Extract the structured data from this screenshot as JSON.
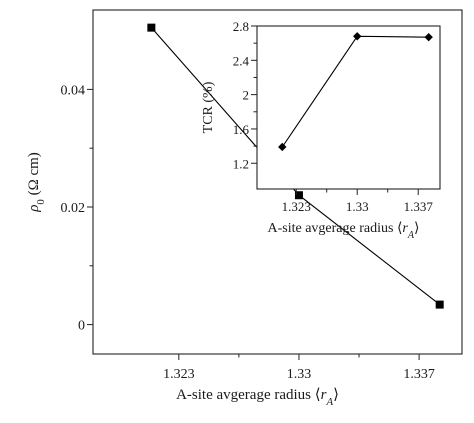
{
  "chart_data": [
    {
      "type": "line",
      "marker": "square",
      "x": [
        1.3214,
        1.33,
        1.3382
      ],
      "y": [
        0.0505,
        0.022,
        0.0034
      ],
      "xlim": [
        1.318,
        1.3395
      ],
      "ylim": [
        -0.005,
        0.0535
      ],
      "xticks": [
        1.323,
        1.33,
        1.337
      ],
      "xtick_labels": [
        "1.323",
        "1.33",
        "1.337"
      ],
      "yticks": [
        0,
        0.02,
        0.04
      ],
      "ytick_labels": [
        "0",
        "0.02",
        "0.04"
      ],
      "xlabel": "A-site avgerage radius ⟨r",
      "xlabel_sub": "A",
      "xlabel_end": "⟩",
      "ylabel": "ρ",
      "ylabel_sub": "0",
      "ylabel_unit": " (Ω cm)",
      "color": "#000000"
    },
    {
      "type": "line",
      "marker": "diamond",
      "x": [
        1.3214,
        1.33,
        1.3382
      ],
      "y": [
        1.39,
        2.68,
        2.67
      ],
      "xlim": [
        1.3185,
        1.3395
      ],
      "ylim": [
        0.9,
        2.8
      ],
      "xticks": [
        1.323,
        1.33,
        1.337
      ],
      "xtick_labels": [
        "1.323",
        "1.33",
        "1.337"
      ],
      "yticks": [
        1.2,
        1.6,
        2.0,
        2.4,
        2.8
      ],
      "ytick_labels": [
        "1.2",
        "1.6",
        "2",
        "2.4",
        "2.8"
      ],
      "xlabel": "A-site avgerage radius ⟨r",
      "xlabel_sub": "A",
      "xlabel_end": "⟩",
      "ylabel": "TCR (%)",
      "color": "#000000"
    }
  ]
}
